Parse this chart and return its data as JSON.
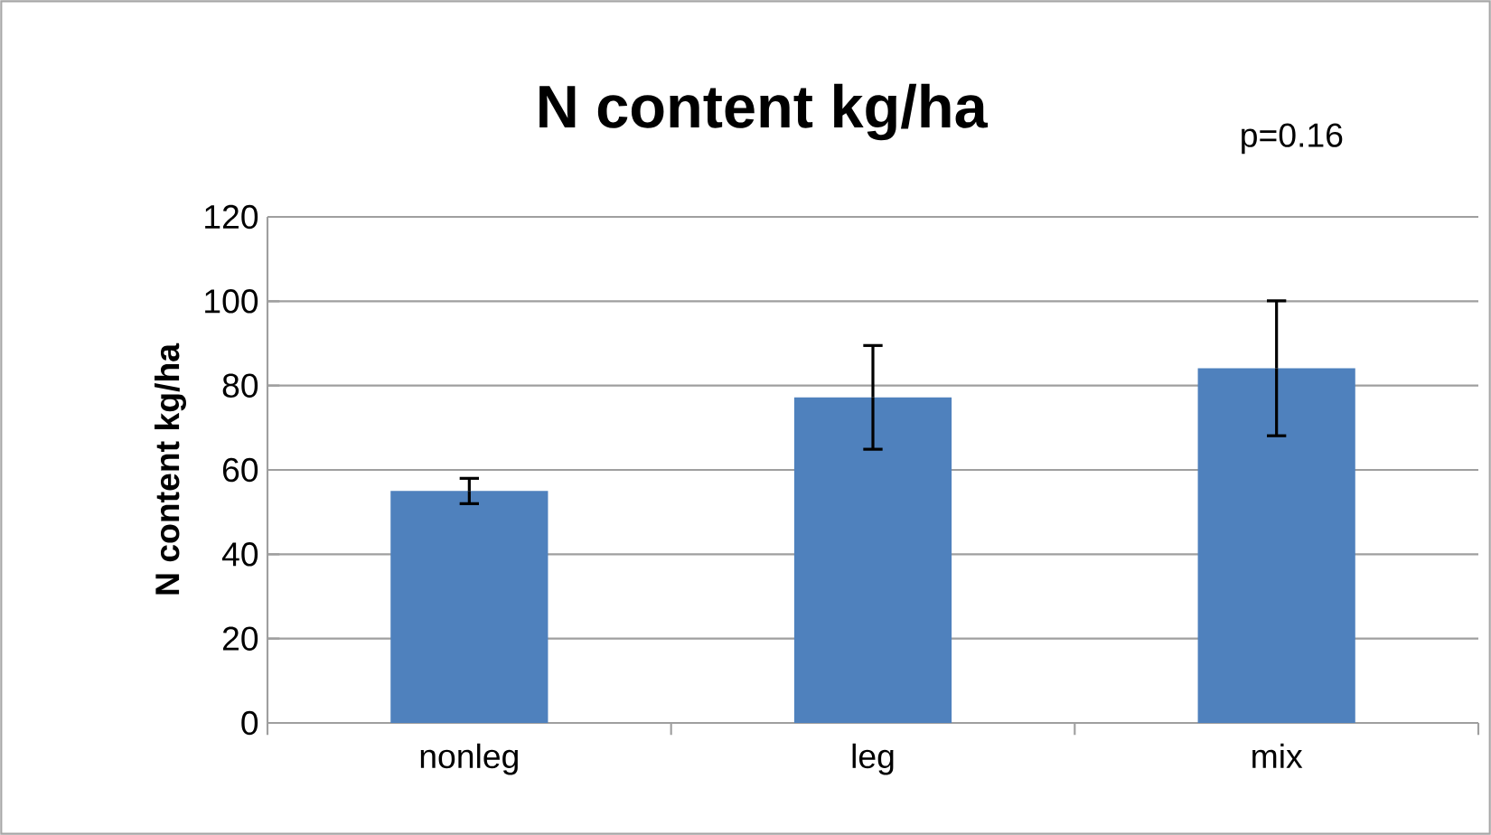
{
  "chart_data": {
    "type": "bar",
    "title": "N content kg/ha",
    "ylabel": "N content kg/ha",
    "annotations": [
      "p=0.16"
    ],
    "categories": [
      "nonleg",
      "leg",
      "mix"
    ],
    "values": [
      55,
      77.2,
      84.1
    ],
    "errors": [
      3,
      12.3,
      16
    ],
    "color": "#4f81bd",
    "ylim": [
      0,
      120
    ],
    "yticks": [
      0,
      20,
      40,
      60,
      80,
      100,
      120
    ],
    "grid": "y"
  }
}
